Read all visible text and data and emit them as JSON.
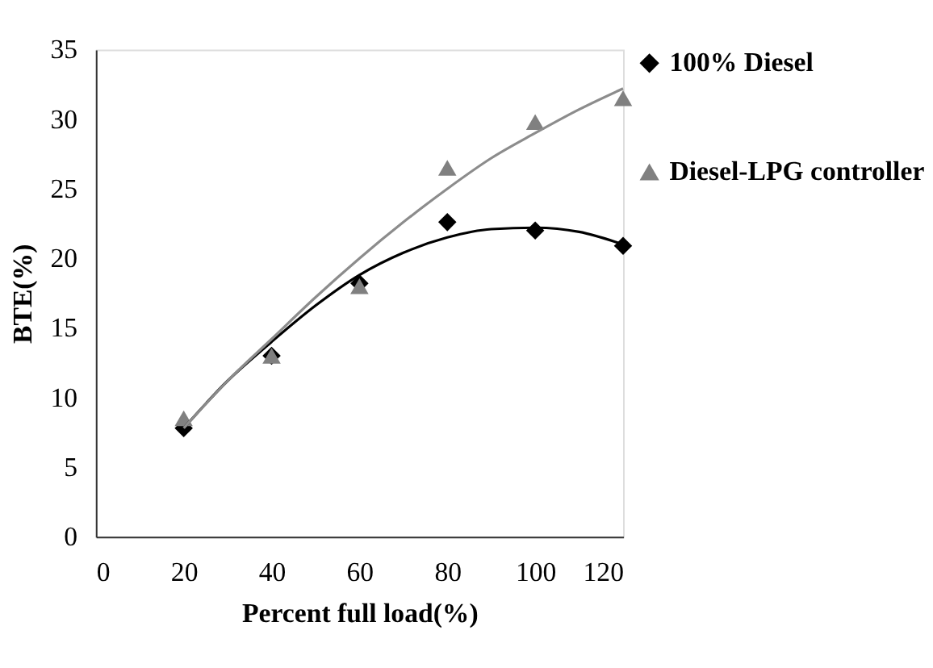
{
  "chart_data": {
    "type": "scatter",
    "xlabel": "Percent full load(%)",
    "ylabel": "BTE(%)",
    "x": [
      20,
      40,
      60,
      80,
      100,
      120
    ],
    "xlim": [
      0,
      120
    ],
    "xticks": [
      0,
      20,
      40,
      60,
      80,
      100,
      120
    ],
    "ylim": [
      0,
      35
    ],
    "yticks": [
      0,
      5,
      10,
      15,
      20,
      25,
      30,
      35
    ],
    "grid": false,
    "legend": "right",
    "series": [
      {
        "name": "100% Diesel",
        "marker": "diamond",
        "color": "#000000",
        "values": [
          7.8,
          13.0,
          18.2,
          22.6,
          22.0,
          20.9
        ]
      },
      {
        "name": "Diesel-LPG controller",
        "marker": "triangle",
        "color": "#808080",
        "values": [
          8.5,
          13.0,
          18.0,
          26.5,
          29.8,
          31.5
        ]
      },
      {
        "type": "line",
        "color": "#000000",
        "line_style": "solid",
        "marker": "none",
        "x": [
          20,
          30,
          40,
          50,
          60,
          70,
          80,
          90,
          100,
          110,
          120
        ],
        "values": [
          7.8,
          11.2,
          14.0,
          16.6,
          18.8,
          20.4,
          21.5,
          22.1,
          22.2,
          21.9,
          21.0
        ]
      },
      {
        "type": "line",
        "color": "#8c8c8c",
        "line_style": "solid",
        "marker": "none",
        "x": [
          20,
          30,
          40,
          50,
          60,
          70,
          80,
          90,
          100,
          110,
          120
        ],
        "values": [
          7.8,
          11.2,
          14.2,
          17.2,
          20.0,
          22.6,
          25.0,
          27.2,
          29.0,
          30.7,
          32.2
        ]
      }
    ]
  }
}
